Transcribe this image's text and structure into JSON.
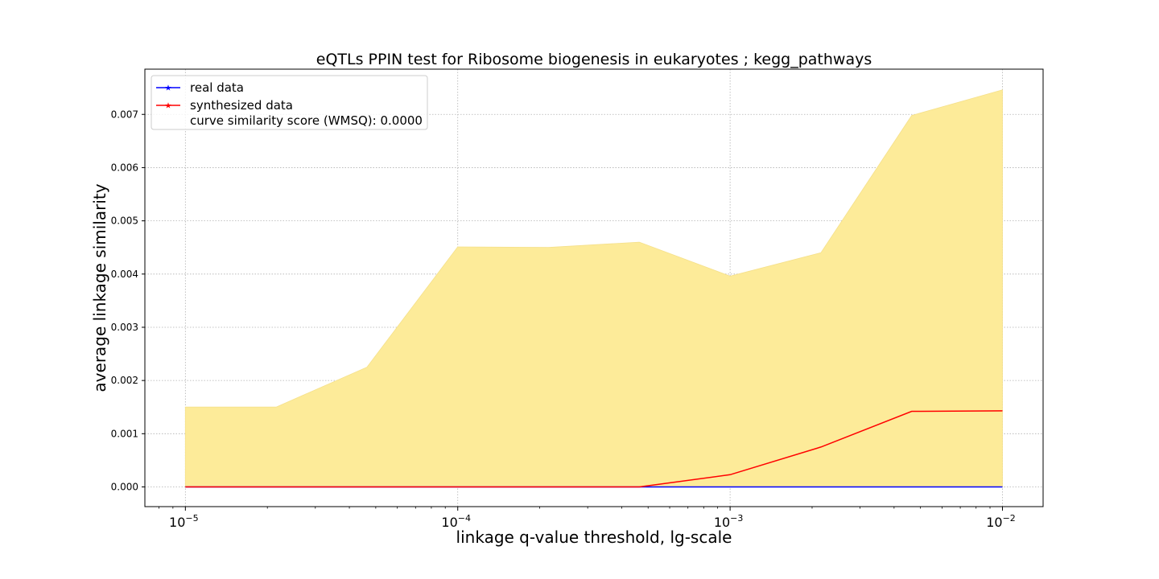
{
  "chart_data": {
    "type": "line",
    "title": "eQTLs PPIN test for Ribosome biogenesis in eukaryotes ; kegg_pathways",
    "xlabel": "linkage q-value threshold, lg-scale",
    "ylabel": "average linkage similarity",
    "x_scale": "log",
    "xlim": [
      7.1e-06,
      0.0141
    ],
    "ylim": [
      -0.00037,
      0.00785
    ],
    "x": [
      1e-05,
      2.154e-05,
      4.642e-05,
      0.0001,
      0.0002154,
      0.0004642,
      0.001,
      0.002154,
      0.004642,
      0.01
    ],
    "x_ticks": [
      {
        "value": 1e-05,
        "base": "10",
        "exp": "−5"
      },
      {
        "value": 0.0001,
        "base": "10",
        "exp": "−4"
      },
      {
        "value": 0.001,
        "base": "10",
        "exp": "−3"
      },
      {
        "value": 0.01,
        "base": "10",
        "exp": "−2"
      }
    ],
    "y_ticks": [
      {
        "value": 0.0,
        "label": "0.000"
      },
      {
        "value": 0.001,
        "label": "0.001"
      },
      {
        "value": 0.002,
        "label": "0.002"
      },
      {
        "value": 0.003,
        "label": "0.003"
      },
      {
        "value": 0.004,
        "label": "0.004"
      },
      {
        "value": 0.005,
        "label": "0.005"
      },
      {
        "value": 0.006,
        "label": "0.006"
      },
      {
        "value": 0.007,
        "label": "0.007"
      }
    ],
    "band": {
      "color": "#fdeb99",
      "upper": [
        0.0015,
        0.0015,
        0.00225,
        0.00451,
        0.0045,
        0.0046,
        0.00396,
        0.0044,
        0.00698,
        0.00746
      ],
      "lower": [
        0,
        0,
        0,
        0,
        0,
        0,
        0,
        0,
        0,
        0
      ]
    },
    "series": [
      {
        "name": "real data",
        "color": "#0000ff",
        "values": [
          0,
          0,
          0,
          0,
          0,
          0,
          0,
          0,
          0,
          0
        ]
      },
      {
        "name": "synthesized data",
        "extra_label": "curve similarity score (WMSQ): 0.0000",
        "color": "#ff0000",
        "values": [
          0,
          0,
          0,
          0,
          0,
          0,
          0.00023,
          0.00075,
          0.00142,
          0.00143
        ]
      }
    ],
    "grid": true,
    "legend_position": "top-left"
  }
}
